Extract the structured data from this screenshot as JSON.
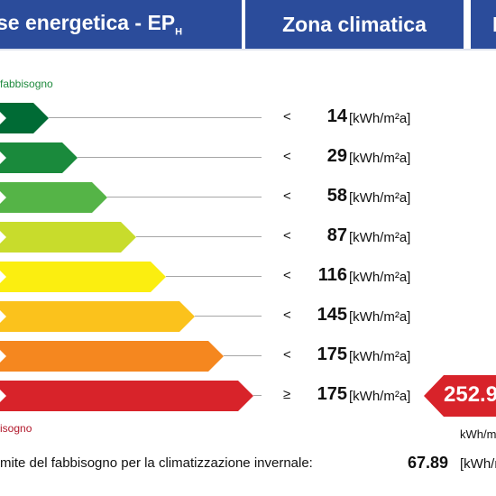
{
  "header": {
    "class_title_text": "se energetica - EP",
    "class_title_subscript": "H",
    "zone_title": "Zona climatica",
    "extra_title": "E"
  },
  "labels": {
    "top": "fabbisogno",
    "bottom": "isogno"
  },
  "classes": [
    {
      "comparator": "<",
      "value": "14",
      "unit": "[kWh/m²a]",
      "color": "#006b35",
      "fraction": 0.1
    },
    {
      "comparator": "<",
      "value": "29",
      "unit": "[kWh/m²a]",
      "color": "#1a8a3c",
      "fraction": 0.16
    },
    {
      "comparator": "<",
      "value": "58",
      "unit": "[kWh/m²a]",
      "color": "#55b447",
      "fraction": 0.22
    },
    {
      "comparator": "<",
      "value": "87",
      "unit": "[kWh/m²a]",
      "color": "#c8dc2c",
      "fraction": 0.28
    },
    {
      "comparator": "<",
      "value": "116",
      "unit": "[kWh/m²a]",
      "color": "#fbee10",
      "fraction": 0.34
    },
    {
      "comparator": "<",
      "value": "145",
      "unit": "[kWh/m²a]",
      "color": "#fbc21c",
      "fraction": 0.4
    },
    {
      "comparator": "<",
      "value": "175",
      "unit": "[kWh/m²a]",
      "color": "#f5871f",
      "fraction": 0.46
    },
    {
      "comparator": "≥",
      "value": "175",
      "unit": "[kWh/m²a]",
      "color": "#d8232a",
      "fraction": 0.52
    }
  ],
  "result": {
    "value": "252.9",
    "unit": "kWh/m",
    "color": "#d8232a"
  },
  "footer": {
    "description": "mite del fabbisogno per la climatizzazione invernale:",
    "value": "67.89",
    "unit": "[kWh/m"
  }
}
